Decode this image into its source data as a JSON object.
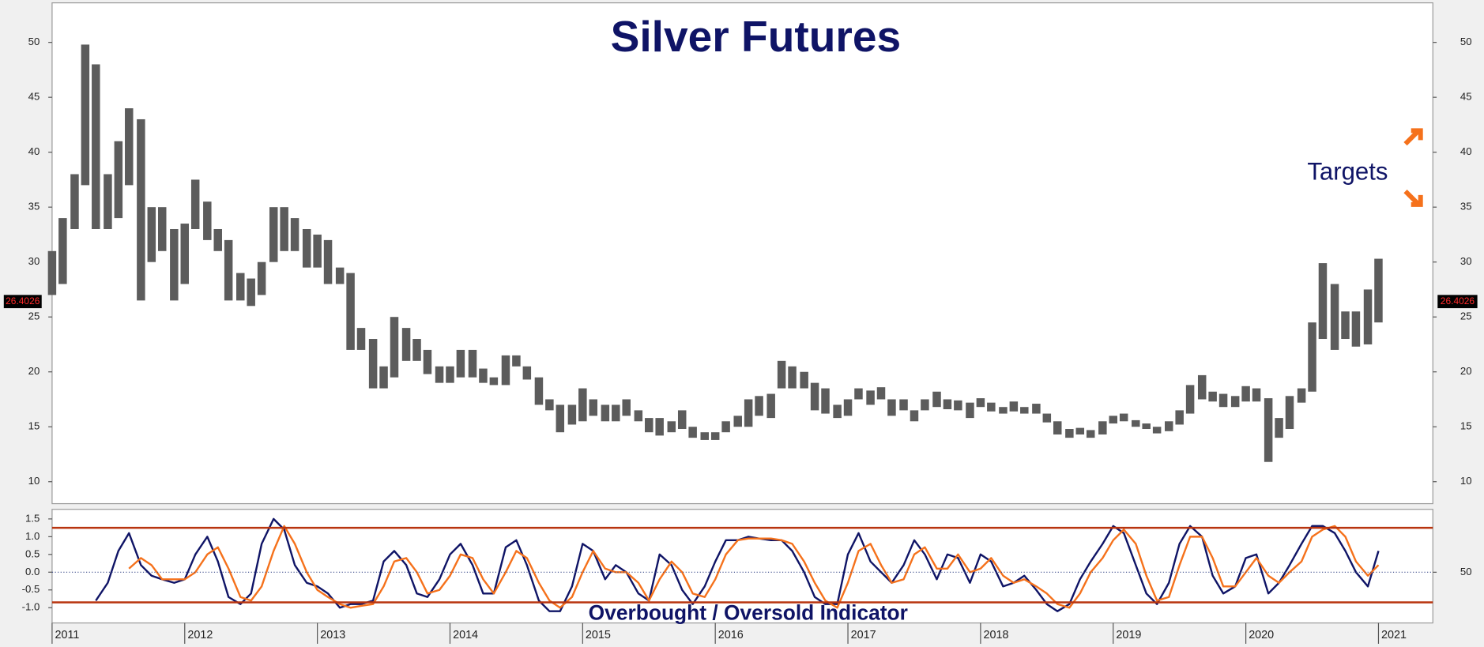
{
  "chart_data": [
    {
      "type": "range",
      "title": "Silver Futures",
      "annotation": "Targets",
      "last_price": 26.4026,
      "color": "#5c5c5c",
      "xlim": [
        2011,
        2021.41
      ],
      "ylim": [
        8,
        53.6
      ],
      "yticks": [
        10,
        15,
        20,
        25,
        30,
        35,
        40,
        45,
        50
      ],
      "x": [
        2011,
        2011.08,
        2011.17,
        2011.25,
        2011.33,
        2011.42,
        2011.5,
        2011.58,
        2011.67,
        2011.75,
        2011.83,
        2011.92,
        2012,
        2012.08,
        2012.17,
        2012.25,
        2012.33,
        2012.42,
        2012.5,
        2012.58,
        2012.67,
        2012.75,
        2012.83,
        2012.92,
        2013,
        2013.08,
        2013.17,
        2013.25,
        2013.33,
        2013.42,
        2013.5,
        2013.58,
        2013.67,
        2013.75,
        2013.83,
        2013.92,
        2014,
        2014.08,
        2014.17,
        2014.25,
        2014.33,
        2014.42,
        2014.5,
        2014.58,
        2014.67,
        2014.75,
        2014.83,
        2014.92,
        2015,
        2015.08,
        2015.17,
        2015.25,
        2015.33,
        2015.42,
        2015.5,
        2015.58,
        2015.67,
        2015.75,
        2015.83,
        2015.92,
        2016,
        2016.08,
        2016.17,
        2016.25,
        2016.33,
        2016.42,
        2016.5,
        2016.58,
        2016.67,
        2016.75,
        2016.83,
        2016.92,
        2017,
        2017.08,
        2017.17,
        2017.25,
        2017.33,
        2017.42,
        2017.5,
        2017.58,
        2017.67,
        2017.75,
        2017.83,
        2017.92,
        2018,
        2018.08,
        2018.17,
        2018.25,
        2018.33,
        2018.42,
        2018.5,
        2018.58,
        2018.67,
        2018.75,
        2018.83,
        2018.92,
        2019,
        2019.08,
        2019.17,
        2019.25,
        2019.33,
        2019.42,
        2019.5,
        2019.58,
        2019.67,
        2019.75,
        2019.83,
        2019.92,
        2020,
        2020.08,
        2020.17,
        2020.25,
        2020.33,
        2020.42,
        2020.5,
        2020.58,
        2020.67,
        2020.75,
        2020.83,
        2020.92,
        2021
      ],
      "high": [
        31,
        34,
        38,
        49.8,
        48,
        38,
        41,
        44,
        43,
        35,
        35,
        33,
        33.5,
        37.5,
        35.5,
        33,
        32,
        29,
        28.5,
        30,
        35,
        35,
        34,
        33,
        32.5,
        32,
        29.5,
        29,
        24,
        23,
        20.5,
        25,
        24,
        23,
        22,
        20.5,
        20.5,
        22,
        22,
        20.3,
        19.5,
        21.5,
        21.5,
        20.5,
        19.5,
        17.5,
        17,
        17,
        18.5,
        17.5,
        17,
        17,
        17.5,
        16.5,
        15.8,
        15.8,
        15.5,
        16.5,
        15,
        14.5,
        14.5,
        15.5,
        16,
        17.5,
        17.8,
        18,
        21,
        20.5,
        20,
        19,
        18.5,
        17,
        17.5,
        18.5,
        18.3,
        18.6,
        17.5,
        17.5,
        16.5,
        17.5,
        18.2,
        17.5,
        17.4,
        17.2,
        17.6,
        17.2,
        16.8,
        17.3,
        16.8,
        17.1,
        16.2,
        15.5,
        14.8,
        14.9,
        14.7,
        15.5,
        16,
        16.2,
        15.6,
        15.3,
        15,
        15.5,
        16.5,
        18.8,
        19.7,
        18.2,
        18,
        17.8,
        18.7,
        18.5,
        17.6,
        15.8,
        17.8,
        18.5,
        24.5,
        29.9,
        28,
        25.5,
        25.5,
        27.5,
        30.3
      ],
      "low": [
        27,
        28,
        33,
        37,
        33,
        33,
        34,
        37,
        26.5,
        30,
        31,
        26.5,
        28,
        33,
        32,
        31,
        26.5,
        26.5,
        26,
        27,
        30,
        31,
        31,
        29.5,
        29.5,
        28,
        28,
        22,
        22,
        18.5,
        18.5,
        19.5,
        21,
        21,
        19.8,
        19,
        19,
        19.5,
        19.5,
        19,
        18.8,
        18.8,
        20.5,
        19.3,
        17,
        16.5,
        14.5,
        15.2,
        15.5,
        16,
        15.5,
        15.5,
        16,
        15.5,
        14.5,
        14.2,
        14.5,
        14.8,
        14,
        13.8,
        13.8,
        14.5,
        15,
        15,
        16,
        15.8,
        18.5,
        18.5,
        18.5,
        16.5,
        16.2,
        15.8,
        16,
        17.5,
        17,
        17.5,
        16,
        16.5,
        15.5,
        16.5,
        16.8,
        16.6,
        16.5,
        15.8,
        16.8,
        16.4,
        16.2,
        16.4,
        16.2,
        16.2,
        15.4,
        14.3,
        14,
        14.3,
        14,
        14.3,
        15.3,
        15.5,
        15,
        14.8,
        14.4,
        14.6,
        15.2,
        16.2,
        17.5,
        17.3,
        16.8,
        16.8,
        17.3,
        17.3,
        11.8,
        14,
        14.8,
        17.2,
        18.2,
        23,
        22,
        23,
        22.3,
        22.5,
        24.5
      ]
    },
    {
      "type": "line",
      "title": "Overbought / Oversold Indicator",
      "xlim": [
        2011,
        2021.41
      ],
      "xticks": [
        2011,
        2012,
        2013,
        2014,
        2015,
        2016,
        2017,
        2018,
        2019,
        2020,
        2021
      ],
      "ylim": [
        -1.43,
        1.77
      ],
      "yticks": [
        {
          "value": -1,
          "label": "-1.0"
        },
        -0.5,
        {
          "value": 0,
          "label": "0.0"
        },
        0.5,
        {
          "value": 1,
          "label": "1.0"
        },
        1.5
      ],
      "y2lim": [
        0,
        112
      ],
      "y2ticks": [
        50
      ],
      "levels": [
        1.25,
        -0.85
      ],
      "level_color": "#b8340f",
      "series": [
        {
          "color": "#0f1466",
          "values": [
            null,
            null,
            null,
            null,
            -0.8,
            -0.3,
            0.6,
            1.1,
            0.2,
            -0.1,
            -0.2,
            -0.3,
            -0.2,
            0.5,
            1.0,
            0.3,
            -0.7,
            -0.9,
            -0.6,
            0.8,
            1.5,
            1.2,
            0.2,
            -0.3,
            -0.4,
            -0.6,
            -1.0,
            -0.9,
            -0.9,
            -0.8,
            0.3,
            0.6,
            0.2,
            -0.6,
            -0.7,
            -0.2,
            0.5,
            0.8,
            0.2,
            -0.6,
            -0.6,
            0.7,
            0.9,
            0.2,
            -0.8,
            -1.1,
            -1.1,
            -0.4,
            0.8,
            0.6,
            -0.2,
            0.2,
            0.0,
            -0.6,
            -0.8,
            0.5,
            0.2,
            -0.5,
            -0.9,
            -0.4,
            0.3,
            0.9,
            0.9,
            1.0,
            0.95,
            0.9,
            0.9,
            0.6,
            0.0,
            -0.7,
            -0.9,
            -0.9,
            0.5,
            1.1,
            0.3,
            0.0,
            -0.3,
            0.2,
            0.9,
            0.5,
            -0.2,
            0.5,
            0.4,
            -0.3,
            0.5,
            0.3,
            -0.4,
            -0.3,
            -0.1,
            -0.5,
            -0.9,
            -1.1,
            -0.9,
            -0.2,
            0.3,
            0.8,
            1.3,
            1.1,
            0.2,
            -0.6,
            -0.9,
            -0.3,
            0.8,
            1.3,
            1.0,
            -0.1,
            -0.6,
            -0.4,
            0.4,
            0.5,
            -0.6,
            -0.3,
            0.2,
            0.8,
            1.3,
            1.3,
            1.1,
            0.6,
            0.0,
            -0.4,
            0.6
          ]
        },
        {
          "color": "#f5711b",
          "values": [
            null,
            null,
            null,
            null,
            null,
            null,
            null,
            0.1,
            0.4,
            0.2,
            -0.2,
            -0.2,
            -0.2,
            0.0,
            0.5,
            0.7,
            0.1,
            -0.7,
            -0.8,
            -0.4,
            0.6,
            1.3,
            0.8,
            0.0,
            -0.5,
            -0.7,
            -0.9,
            -1.0,
            -0.95,
            -0.9,
            -0.4,
            0.3,
            0.4,
            0.0,
            -0.6,
            -0.5,
            -0.1,
            0.5,
            0.4,
            -0.2,
            -0.6,
            0.0,
            0.6,
            0.4,
            -0.3,
            -0.8,
            -1.0,
            -0.7,
            0.0,
            0.6,
            0.1,
            0.0,
            0.0,
            -0.3,
            -0.8,
            -0.2,
            0.3,
            0.0,
            -0.6,
            -0.7,
            -0.2,
            0.5,
            0.9,
            0.95,
            0.95,
            0.95,
            0.9,
            0.8,
            0.3,
            -0.3,
            -0.8,
            -1.0,
            -0.3,
            0.6,
            0.8,
            0.2,
            -0.3,
            -0.2,
            0.5,
            0.7,
            0.1,
            0.1,
            0.5,
            0.0,
            0.1,
            0.4,
            -0.1,
            -0.3,
            -0.2,
            -0.4,
            -0.6,
            -0.9,
            -1.0,
            -0.6,
            0.0,
            0.4,
            0.9,
            1.2,
            0.8,
            -0.1,
            -0.8,
            -0.7,
            0.2,
            1.0,
            1.0,
            0.4,
            -0.4,
            -0.4,
            0.0,
            0.4,
            -0.1,
            -0.3,
            0.0,
            0.3,
            1.0,
            1.2,
            1.3,
            1.0,
            0.3,
            -0.1,
            0.2
          ]
        }
      ]
    }
  ]
}
